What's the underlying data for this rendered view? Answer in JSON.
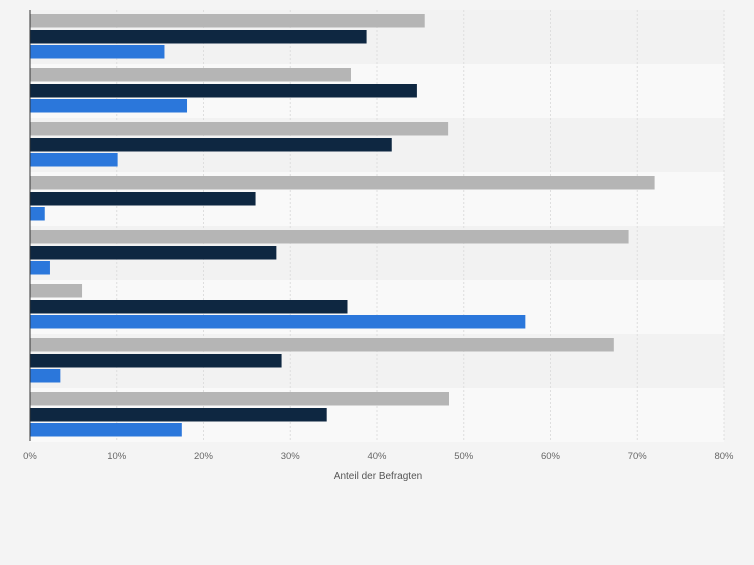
{
  "chart_data": {
    "type": "bar",
    "orientation": "horizontal",
    "title": "",
    "xlabel": "Anteil der Befragten",
    "ylabel": "",
    "xlim": [
      0,
      80
    ],
    "x_ticks": [
      "0%",
      "10%",
      "20%",
      "30%",
      "40%",
      "50%",
      "60%",
      "70%",
      "80%"
    ],
    "categories": [
      "",
      "",
      "",
      "",
      "",
      "",
      "",
      ""
    ],
    "grid": true,
    "legend": "none",
    "series": [
      {
        "color": "#b5b5b5",
        "values": [
          45.5,
          37.0,
          48.2,
          72.0,
          69.0,
          6.0,
          67.3,
          48.3
        ]
      },
      {
        "color": "#0e2741",
        "values": [
          38.8,
          44.6,
          41.7,
          26.0,
          28.4,
          36.6,
          29.0,
          34.2
        ]
      },
      {
        "color": "#2b77db",
        "values": [
          15.5,
          18.1,
          10.1,
          1.7,
          2.3,
          57.1,
          3.5,
          17.5
        ]
      }
    ]
  }
}
